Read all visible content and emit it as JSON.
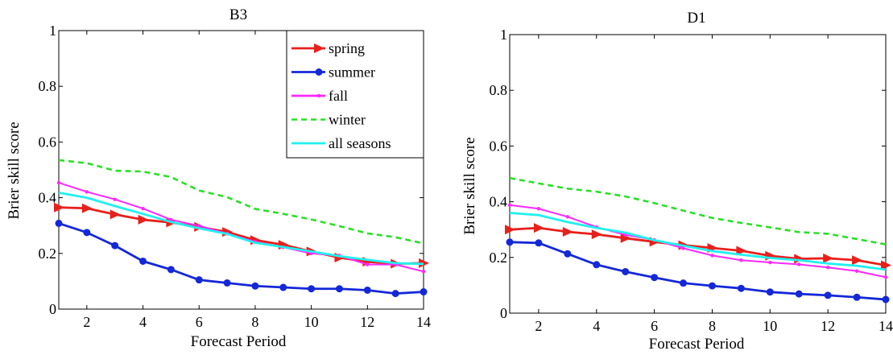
{
  "chart_data": [
    {
      "type": "line",
      "title": "B3",
      "xlabel": "Forecast Period",
      "ylabel": "Brier skill score",
      "xlim": [
        1,
        14
      ],
      "ylim": [
        0,
        1
      ],
      "xticks": [
        2,
        4,
        6,
        8,
        10,
        12,
        14
      ],
      "yticks": [
        0,
        0.2,
        0.4,
        0.6,
        0.8,
        1
      ],
      "ytick_labels": [
        "0",
        "0.2",
        "0.4",
        "0.6",
        "0.8",
        "1"
      ],
      "grid": false,
      "legend": "top-right",
      "x": [
        1,
        2,
        3,
        4,
        5,
        6,
        7,
        8,
        9,
        10,
        11,
        12,
        13,
        14
      ],
      "series": [
        {
          "name": "spring",
          "color": "#e8201c",
          "style": "solid",
          "marker": "triangle-right",
          "values": [
            0.365,
            0.362,
            0.34,
            0.321,
            0.311,
            0.295,
            0.277,
            0.248,
            0.231,
            0.207,
            0.185,
            0.17,
            0.163,
            0.165
          ]
        },
        {
          "name": "summer",
          "color": "#1428d8",
          "style": "solid",
          "marker": "circle",
          "values": [
            0.308,
            0.275,
            0.228,
            0.172,
            0.142,
            0.105,
            0.094,
            0.083,
            0.078,
            0.073,
            0.073,
            0.068,
            0.056,
            0.062
          ]
        },
        {
          "name": "fall",
          "color": "#ff28ff",
          "style": "solid",
          "marker": "small-dot",
          "values": [
            0.454,
            0.421,
            0.394,
            0.361,
            0.321,
            0.299,
            0.271,
            0.242,
            0.222,
            0.2,
            0.192,
            0.16,
            0.16,
            0.135
          ]
        },
        {
          "name": "winter",
          "color": "#28e028",
          "style": "dashed",
          "marker": "none",
          "values": [
            0.535,
            0.524,
            0.497,
            0.494,
            0.474,
            0.426,
            0.402,
            0.36,
            0.342,
            0.322,
            0.298,
            0.272,
            0.258,
            0.236
          ]
        },
        {
          "name": "all seasons",
          "color": "#22f0f0",
          "style": "solid",
          "marker": "none",
          "values": [
            0.418,
            0.4,
            0.37,
            0.342,
            0.313,
            0.29,
            0.27,
            0.238,
            0.223,
            0.207,
            0.19,
            0.177,
            0.165,
            0.162
          ]
        }
      ]
    },
    {
      "type": "line",
      "title": "D1",
      "xlabel": "Forecast Period",
      "ylabel": "Brier skill score",
      "xlim": [
        1,
        14
      ],
      "ylim": [
        0,
        1
      ],
      "xticks": [
        2,
        4,
        6,
        8,
        10,
        12,
        14
      ],
      "yticks": [
        0,
        0.2,
        0.4,
        0.6,
        0.8,
        1
      ],
      "ytick_labels": [
        "0",
        "0.2",
        "0.4",
        "0.6",
        "0.8",
        "1"
      ],
      "grid": false,
      "legend": "none",
      "x": [
        1,
        2,
        3,
        4,
        5,
        6,
        7,
        8,
        9,
        10,
        11,
        12,
        13,
        14
      ],
      "series": [
        {
          "name": "spring",
          "color": "#e8201c",
          "style": "solid",
          "marker": "triangle-right",
          "values": [
            0.3,
            0.306,
            0.292,
            0.283,
            0.269,
            0.256,
            0.244,
            0.234,
            0.224,
            0.206,
            0.195,
            0.197,
            0.19,
            0.172
          ]
        },
        {
          "name": "summer",
          "color": "#1428d8",
          "style": "solid",
          "marker": "circle",
          "values": [
            0.255,
            0.252,
            0.213,
            0.174,
            0.149,
            0.128,
            0.108,
            0.098,
            0.089,
            0.076,
            0.069,
            0.064,
            0.057,
            0.049
          ]
        },
        {
          "name": "fall",
          "color": "#ff28ff",
          "style": "solid",
          "marker": "small-dot",
          "values": [
            0.388,
            0.375,
            0.346,
            0.309,
            0.281,
            0.263,
            0.233,
            0.207,
            0.19,
            0.182,
            0.175,
            0.164,
            0.151,
            0.129
          ]
        },
        {
          "name": "winter",
          "color": "#28e028",
          "style": "dashed",
          "marker": "none",
          "values": [
            0.485,
            0.466,
            0.447,
            0.436,
            0.419,
            0.395,
            0.368,
            0.342,
            0.324,
            0.308,
            0.291,
            0.285,
            0.266,
            0.247
          ]
        },
        {
          "name": "all seasons",
          "color": "#22f0f0",
          "style": "solid",
          "marker": "none",
          "values": [
            0.36,
            0.352,
            0.327,
            0.306,
            0.289,
            0.262,
            0.242,
            0.223,
            0.21,
            0.198,
            0.19,
            0.178,
            0.17,
            0.156
          ]
        }
      ]
    }
  ]
}
